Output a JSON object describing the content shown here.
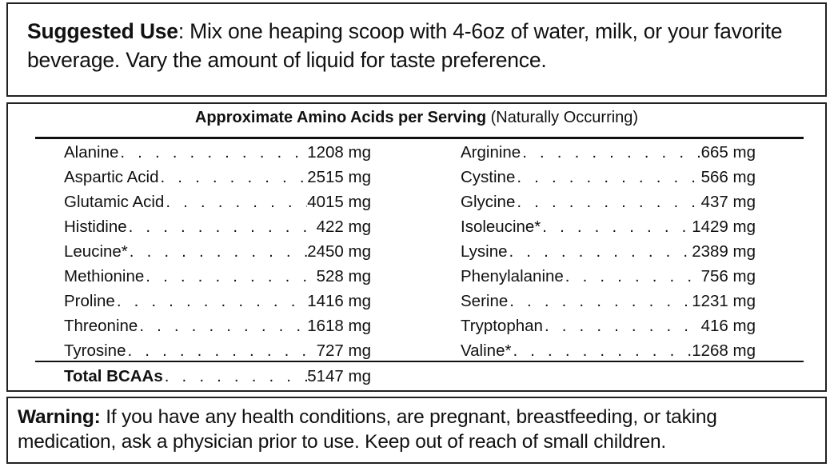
{
  "suggested_use": {
    "label": "Suggested Use",
    "text": ": Mix one heaping scoop with 4-6oz of water, milk, or your favorite beverage. Vary the amount of liquid for taste preference."
  },
  "amino_table": {
    "title": "Approximate Amino Acids per Serving",
    "subtitle": "(Naturally Occurring)",
    "left": [
      {
        "name": "Alanine",
        "value": "1208 mg"
      },
      {
        "name": "Aspartic Acid",
        "value": "2515 mg"
      },
      {
        "name": "Glutamic Acid",
        "value": "4015 mg"
      },
      {
        "name": "Histidine",
        "value": "422 mg"
      },
      {
        "name": "Leucine*",
        "value": "2450 mg"
      },
      {
        "name": "Methionine",
        "value": "528 mg"
      },
      {
        "name": "Proline",
        "value": "1416 mg"
      },
      {
        "name": "Threonine",
        "value": "1618 mg"
      },
      {
        "name": "Tyrosine",
        "value": "727 mg"
      }
    ],
    "right": [
      {
        "name": "Arginine",
        "value": "665 mg"
      },
      {
        "name": "Cystine",
        "value": "566 mg"
      },
      {
        "name": "Glycine",
        "value": "437 mg"
      },
      {
        "name": "Isoleucine*",
        "value": "1429 mg"
      },
      {
        "name": "Lysine",
        "value": "2389 mg"
      },
      {
        "name": "Phenylalanine",
        "value": "756 mg"
      },
      {
        "name": "Serine",
        "value": "1231 mg"
      },
      {
        "name": "Tryptophan",
        "value": "416 mg"
      },
      {
        "name": "Valine*",
        "value": "1268 mg"
      }
    ],
    "total": {
      "name": "Total BCAAs",
      "value": "5147 mg"
    }
  },
  "warning": {
    "label": "Warning:",
    "text": " If you have any health conditions, are pregnant, breastfeeding, or taking medication, ask a physician prior to use. Keep out of reach of small children."
  }
}
